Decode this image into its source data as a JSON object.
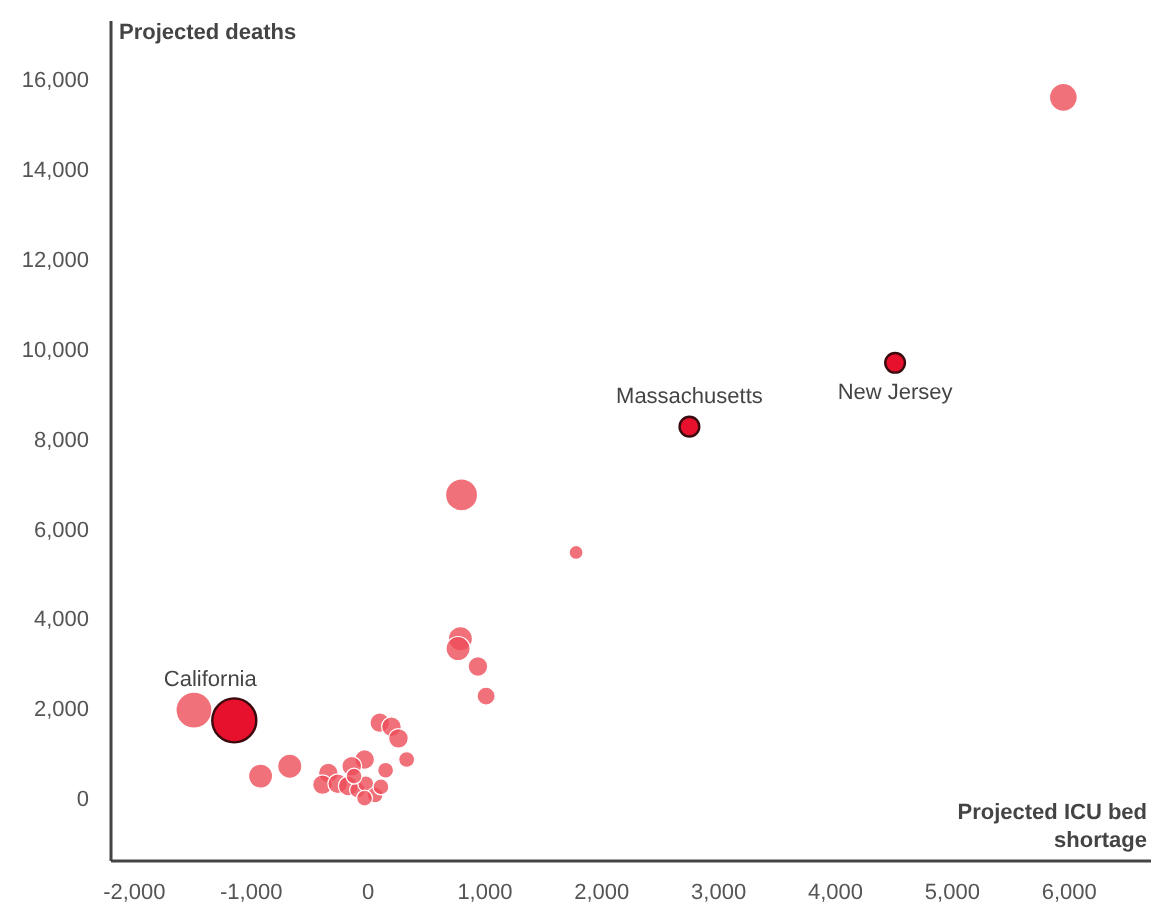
{
  "chart_data": {
    "type": "bubble",
    "xlabel": "Projected ICU bed shortage",
    "ylabel": "Projected deaths",
    "xlim": [
      -2200,
      6700
    ],
    "ylim": [
      -1400,
      17300
    ],
    "xticks": [
      {
        "value": -2000,
        "label": "-2,000"
      },
      {
        "value": -1000,
        "label": "-1,000"
      },
      0,
      {
        "value": 1000,
        "label": "1,000"
      },
      {
        "value": 2000,
        "label": "2,000"
      },
      {
        "value": 3000,
        "label": "3,000"
      },
      {
        "value": 4000,
        "label": "4,000"
      },
      {
        "value": 5000,
        "label": "5,000"
      },
      {
        "value": 6000,
        "label": "6,000"
      }
    ],
    "yticks": [
      0,
      {
        "value": 2000,
        "label": "2,000"
      },
      {
        "value": 4000,
        "label": "4,000"
      },
      {
        "value": 6000,
        "label": "6,000"
      },
      {
        "value": 8000,
        "label": "8,000"
      },
      {
        "value": 10000,
        "label": "10,000"
      },
      {
        "value": 12000,
        "label": "12,000"
      },
      {
        "value": 14000,
        "label": "14,000"
      },
      {
        "value": 16000,
        "label": "16,000"
      }
    ],
    "grid": false,
    "series": [
      {
        "color": "#ee4d5a",
        "x": [
          5950,
          800,
          1780,
          790,
          770,
          940,
          1010,
          -1490,
          -920,
          -670,
          100,
          200,
          260,
          330,
          150,
          -30,
          -140,
          -340,
          -390,
          -260,
          -170,
          -90,
          -20,
          60,
          -30,
          110,
          -120
        ],
        "values": [
          15600,
          6750,
          5470,
          3550,
          3330,
          2930,
          2270,
          1960,
          490,
          710,
          1680,
          1590,
          1330,
          860,
          620,
          860,
          710,
          560,
          300,
          320,
          270,
          180,
          320,
          70,
          0,
          250,
          490
        ],
        "sizes": [
          0.4,
          0.53,
          0.1,
          0.3,
          0.3,
          0.2,
          0.17,
          0.67,
          0.3,
          0.3,
          0.2,
          0.2,
          0.2,
          0.13,
          0.13,
          0.2,
          0.2,
          0.2,
          0.2,
          0.2,
          0.2,
          0.13,
          0.13,
          0.13,
          0.13,
          0.13,
          0.13
        ]
      },
      {
        "color": "#e8112d",
        "x": [
          -1145,
          2750,
          4510
        ],
        "values": [
          1730,
          8270,
          9690
        ],
        "sizes": [
          1,
          0.2,
          0.2
        ]
      }
    ],
    "annotations": [
      {
        "text": "California",
        "x": -1145,
        "y": 1730
      },
      {
        "text": "Massachusetts",
        "x": 2750,
        "y": 8270
      },
      {
        "text": "New Jersey",
        "x": 4510,
        "y": 9690
      }
    ]
  }
}
